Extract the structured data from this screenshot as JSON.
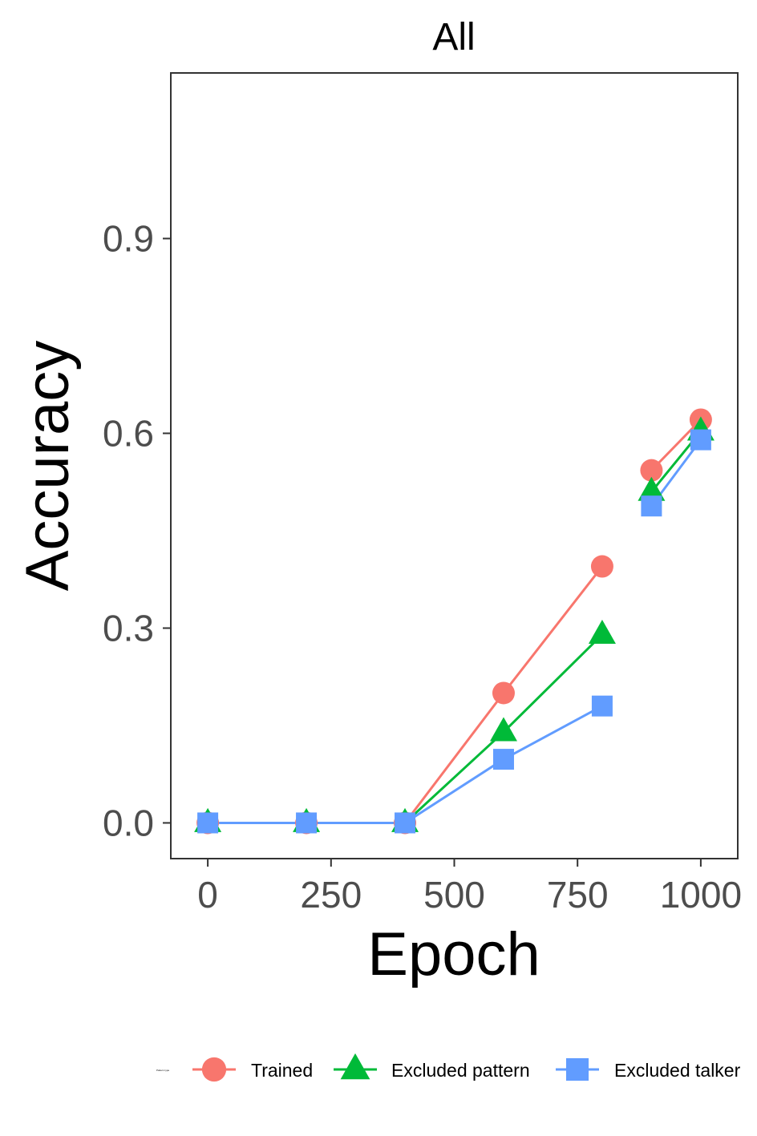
{
  "chart_data": {
    "type": "line",
    "title": "All",
    "xlabel": "Epoch",
    "ylabel": "Accuracy",
    "xlim": [
      -75,
      1075
    ],
    "ylim": [
      -0.055,
      1.155
    ],
    "x_ticks": [
      0,
      250,
      500,
      750,
      1000
    ],
    "x_tick_labels": [
      "0",
      "250",
      "500",
      "750",
      "1000"
    ],
    "y_ticks": [
      0.0,
      0.3,
      0.6,
      0.9
    ],
    "y_tick_labels": [
      "0.0",
      "0.3",
      "0.6",
      "0.9"
    ],
    "grid": false,
    "legend_position": "bottom-right",
    "legend_title": "Pattern type",
    "x": [
      0,
      200,
      400,
      600,
      800,
      900,
      1000
    ],
    "series": [
      {
        "name": "Trained",
        "marker": "circle",
        "color": "#F8766D",
        "values": [
          0.0,
          0.0,
          0.0,
          0.2,
          0.395,
          0.543,
          0.621
        ]
      },
      {
        "name": "Excluded pattern",
        "marker": "triangle",
        "color": "#00BA38",
        "values": [
          0.0,
          0.0,
          0.0,
          0.14,
          0.29,
          0.51,
          0.603
        ]
      },
      {
        "name": "Excluded talker",
        "marker": "square",
        "color": "#619CFF",
        "values": [
          0.0,
          0.0,
          0.0,
          0.098,
          0.18,
          0.488,
          0.59
        ]
      }
    ],
    "line_breaks_after_x": [
      800
    ]
  }
}
